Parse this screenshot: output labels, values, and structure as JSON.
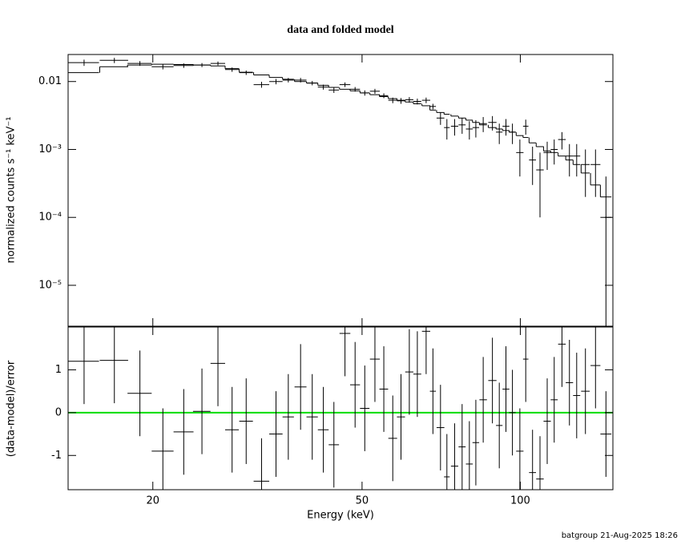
{
  "chart_data": [
    {
      "type": "errorbar",
      "title": "data and folded model",
      "ylabel": "normalized counts s⁻¹ keV⁻¹",
      "log_x": true,
      "log_y": true,
      "xlim": [
        13.8,
        150
      ],
      "ylim": [
        2.5e-06,
        0.025
      ],
      "xticks": [
        20,
        50,
        100
      ],
      "yticks": [
        0.01,
        {
          "value": 0.001,
          "label": "10⁻³"
        },
        {
          "value": 0.0001,
          "label": "10⁻⁴"
        },
        {
          "value": 1e-05,
          "label": "10⁻⁵"
        }
      ],
      "color": "#000000",
      "x": [
        14.8,
        16.9,
        18.9,
        20.9,
        22.9,
        24.8,
        26.6,
        28.3,
        30.1,
        32.2,
        34.3,
        36.2,
        38.2,
        40.2,
        42.2,
        44.2,
        46.4,
        48.5,
        50.6,
        52.9,
        55.0,
        57.2,
        59.3,
        61.5,
        63.7,
        66.2,
        68.2,
        70.5,
        72.5,
        75.0,
        77.5,
        80.0,
        82.3,
        85.0,
        88.5,
        91.2,
        93.9,
        96.6,
        99.8,
        102.4,
        105.5,
        109,
        112.5,
        116,
        120,
        124,
        128,
        133,
        139,
        145.5
      ],
      "xerr": [
        1.0,
        1.05,
        1.0,
        1.0,
        1.0,
        0.95,
        0.85,
        0.85,
        0.9,
        1.1,
        1.0,
        0.9,
        1.0,
        1.0,
        1.0,
        1.0,
        1.1,
        1.05,
        1.05,
        1.15,
        1.05,
        1.1,
        1.05,
        1.1,
        1.1,
        1.2,
        0.9,
        1.2,
        0.9,
        1.2,
        1.2,
        1.2,
        1.2,
        1.4,
        1.6,
        1.3,
        1.4,
        1.4,
        1.6,
        1.2,
        1.6,
        1.8,
        1.8,
        1.8,
        2,
        2,
        2,
        2.5,
        3,
        3.5
      ],
      "values": [
        0.019,
        0.0205,
        0.0185,
        0.0165,
        0.0172,
        0.0175,
        0.0185,
        0.015,
        0.0135,
        0.009,
        0.01,
        0.0105,
        0.0105,
        0.0095,
        0.0083,
        0.0075,
        0.009,
        0.0077,
        0.0068,
        0.0072,
        0.0062,
        0.0053,
        0.0052,
        0.0054,
        0.0051,
        0.0053,
        0.0043,
        0.0029,
        0.0021,
        0.0022,
        0.0023,
        0.002,
        0.0021,
        0.0024,
        0.0025,
        0.0018,
        0.0022,
        0.0018,
        0.0009,
        0.0022,
        0.0007,
        0.0005,
        0.0009,
        0.001,
        0.0014,
        0.0008,
        0.0008,
        0.0006,
        0.0006,
        0.0001
      ],
      "errors": [
        0.002,
        0.0018,
        0.0015,
        0.0014,
        0.0013,
        0.0012,
        0.0012,
        0.0011,
        0.001,
        0.0009,
        0.0009,
        0.0008,
        0.0008,
        0.0007,
        0.0007,
        0.0007,
        0.0007,
        0.0006,
        0.0006,
        0.0006,
        0.0005,
        0.0005,
        0.0005,
        0.0005,
        0.0005,
        0.0005,
        0.0004,
        0.0006,
        0.0007,
        0.0006,
        0.0006,
        0.0006,
        0.0006,
        0.0006,
        0.0006,
        0.0006,
        0.0006,
        0.0006,
        0.0005,
        0.00055,
        0.0004,
        0.0004,
        0.0004,
        0.0004,
        0.0004,
        0.0004,
        0.0004,
        0.0004,
        0.0004,
        0.0003
      ],
      "model": [
        0.0135,
        0.0165,
        0.0175,
        0.018,
        0.0178,
        0.0175,
        0.017,
        0.0155,
        0.0137,
        0.0125,
        0.0115,
        0.0108,
        0.01,
        0.0095,
        0.0088,
        0.0082,
        0.0077,
        0.0073,
        0.0068,
        0.0064,
        0.006,
        0.0056,
        0.0053,
        0.005,
        0.0047,
        0.0044,
        0.0038,
        0.0035,
        0.0033,
        0.0031,
        0.0029,
        0.0027,
        0.0025,
        0.0023,
        0.0021,
        0.002,
        0.0019,
        0.0018,
        0.0016,
        0.0015,
        0.00125,
        0.0011,
        0.00095,
        0.0009,
        0.0008,
        0.0007,
        0.0006,
        0.00045,
        0.0003,
        0.0002
      ]
    },
    {
      "type": "residual",
      "xlabel": "Energy (keV)",
      "ylabel": "(data-model)/error",
      "log_x": true,
      "xlim": [
        13.8,
        150
      ],
      "ylim": [
        -1.8,
        2
      ],
      "xticks": [
        20,
        50,
        100
      ],
      "yticks": [
        -1,
        0,
        1
      ],
      "color": "#000000",
      "reference_line": {
        "value": 0,
        "color": "#00dd00"
      },
      "x": [
        14.8,
        16.9,
        18.9,
        20.9,
        22.9,
        24.8,
        26.6,
        28.3,
        30.1,
        32.2,
        34.3,
        36.2,
        38.2,
        40.2,
        42.2,
        44.2,
        46.4,
        48.5,
        50.6,
        52.9,
        55.0,
        57.2,
        59.3,
        61.5,
        63.7,
        66.2,
        68.2,
        70.5,
        72.5,
        75.0,
        77.5,
        80.0,
        82.3,
        85.0,
        88.5,
        91.2,
        93.9,
        96.6,
        99.8,
        102.4,
        105.5,
        109,
        112.5,
        116,
        120,
        124,
        128,
        133,
        139,
        145.5
      ],
      "xerr": [
        1.0,
        1.05,
        1.0,
        1.0,
        1.0,
        0.95,
        0.85,
        0.85,
        0.9,
        1.1,
        1.0,
        0.9,
        1.0,
        1.0,
        1.0,
        1.0,
        1.1,
        1.05,
        1.05,
        1.15,
        1.05,
        1.1,
        1.05,
        1.1,
        1.1,
        1.2,
        0.9,
        1.2,
        0.9,
        1.2,
        1.2,
        1.2,
        1.2,
        1.4,
        1.6,
        1.3,
        1.4,
        1.4,
        1.6,
        1.2,
        1.6,
        1.8,
        1.8,
        1.8,
        2,
        2,
        2,
        2.5,
        3,
        3.5
      ],
      "values": [
        1.2,
        1.22,
        0.45,
        -0.9,
        -0.45,
        0.03,
        1.15,
        -0.4,
        -0.2,
        -1.6,
        -0.5,
        -0.1,
        0.6,
        -0.1,
        -0.4,
        -0.75,
        1.85,
        0.65,
        0.1,
        1.25,
        0.55,
        -0.6,
        -0.1,
        0.95,
        0.9,
        1.9,
        0.5,
        -0.35,
        -1.5,
        -1.25,
        -0.8,
        -1.2,
        -0.7,
        0.3,
        0.75,
        -0.3,
        0.55,
        0,
        -0.9,
        1.25,
        -1.4,
        -1.55,
        -0.2,
        0.3,
        1.6,
        0.7,
        0.4,
        0.5,
        1.1,
        -0.5
      ],
      "errors": [
        1,
        1,
        1,
        1,
        1,
        1,
        1,
        1,
        1,
        1,
        1,
        1,
        1,
        1,
        1,
        1,
        1,
        1,
        1,
        1,
        1,
        1,
        1,
        1,
        1,
        1,
        1,
        1,
        1,
        1,
        1,
        1,
        1,
        1,
        1,
        1,
        1,
        1,
        1,
        1,
        1,
        1,
        1,
        1,
        1,
        1,
        1,
        1,
        1,
        1
      ]
    }
  ],
  "footer": "batgroup 21-Aug-2025 18:26"
}
